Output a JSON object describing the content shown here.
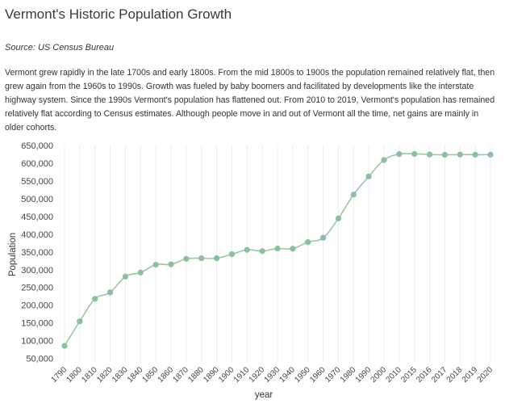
{
  "page": {
    "title": "Vermont's Historic Population Growth",
    "source": "Source: US Census Bureau",
    "description": "Vermont grew rapidly in the late 1700s and early 1800s. From the mid 1800s to 1900s the population remained relatively flat, then grew again from the 1960s to 1990s. Growth was fueled by baby boomers and facilitated by developments like the interstate highway system. Since the 1990s Vermont's population has flattened out. From 2010 to 2019, Vermont's population has remained relatively flat according to Census estimates. Although people move in and out of Vermont all the time, net gains are mainly in older cohorts."
  },
  "chart_data": {
    "type": "line",
    "xlabel": "year",
    "ylabel": "Population",
    "ylim": [
      40000,
      650000
    ],
    "yticks": [
      50000,
      100000,
      150000,
      200000,
      250000,
      300000,
      350000,
      400000,
      450000,
      500000,
      550000,
      600000,
      650000
    ],
    "ytick_labels": [
      "50,000",
      "100,000",
      "150,000",
      "200,000",
      "250,000",
      "300,000",
      "350,000",
      "400,000",
      "450,000",
      "500,000",
      "550,000",
      "600,000",
      "650,000"
    ],
    "grid": "vertical",
    "line_color": "#9bc7a9",
    "point_color": "#8cbf9d",
    "categories": [
      "1790",
      "1800",
      "1810",
      "1820",
      "1830",
      "1840",
      "1850",
      "1860",
      "1870",
      "1880",
      "1890",
      "1900",
      "1910",
      "1920",
      "1930",
      "1940",
      "1950",
      "1960",
      "1970",
      "1980",
      "1990",
      "2000",
      "2010",
      "2015",
      "2016",
      "2017",
      "2018",
      "2019",
      "2020"
    ],
    "values": [
      85425,
      154465,
      217895,
      235981,
      280652,
      291948,
      314120,
      315098,
      330551,
      332286,
      332422,
      343641,
      355956,
      352428,
      359611,
      359231,
      377747,
      389881,
      444330,
      511456,
      562758,
      608827,
      625741,
      626088,
      624594,
      623657,
      624358,
      623989,
      623989
    ]
  }
}
